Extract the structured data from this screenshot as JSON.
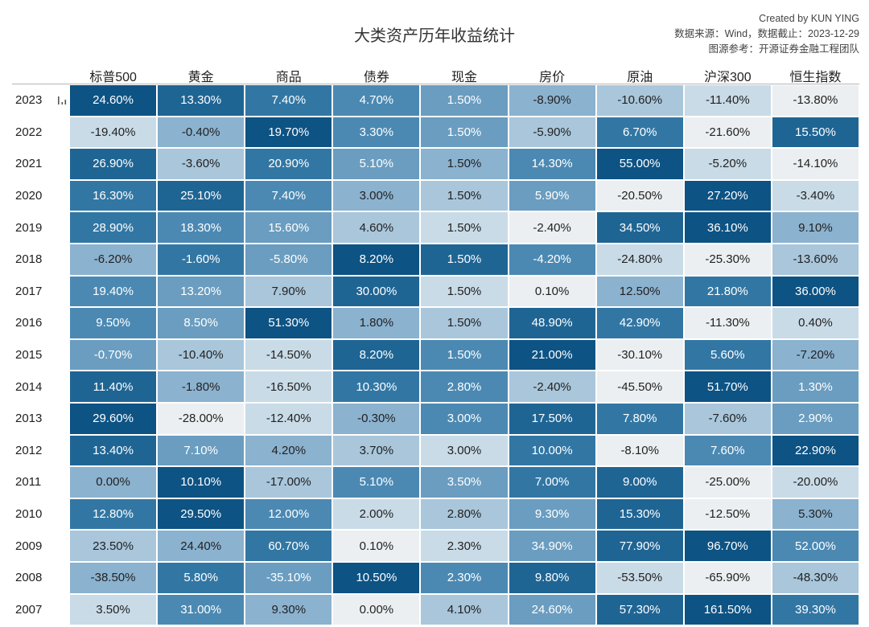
{
  "header": {
    "title": "大类资产历年收益统计",
    "credit": "Created by KUN YING",
    "source": "数据来源：Wind，数据截止：2023-12-29",
    "reference": "图源参考：开源证券金融工程团队"
  },
  "chart_data": {
    "type": "heatmap",
    "title": "大类资产历年收益统计",
    "columns": [
      "标普500",
      "黄金",
      "商品",
      "债券",
      "现金",
      "房价",
      "原油",
      "沪深300",
      "恒生指数"
    ],
    "rows": [
      {
        "year": "2023",
        "values": [
          "24.60%",
          "13.30%",
          "7.40%",
          "4.70%",
          "1.50%",
          "-8.90%",
          "-10.60%",
          "-11.40%",
          "-13.80%"
        ]
      },
      {
        "year": "2022",
        "values": [
          "-19.40%",
          "-0.40%",
          "19.70%",
          "3.30%",
          "1.50%",
          "-5.90%",
          "6.70%",
          "-21.60%",
          "15.50%"
        ]
      },
      {
        "year": "2021",
        "values": [
          "26.90%",
          "-3.60%",
          "20.90%",
          "5.10%",
          "1.50%",
          "14.30%",
          "55.00%",
          "-5.20%",
          "-14.10%"
        ]
      },
      {
        "year": "2020",
        "values": [
          "16.30%",
          "25.10%",
          "7.40%",
          "3.00%",
          "1.50%",
          "5.90%",
          "-20.50%",
          "27.20%",
          "-3.40%"
        ]
      },
      {
        "year": "2019",
        "values": [
          "28.90%",
          "18.30%",
          "15.60%",
          "4.60%",
          "1.50%",
          "-2.40%",
          "34.50%",
          "36.10%",
          "9.10%"
        ]
      },
      {
        "year": "2018",
        "values": [
          "-6.20%",
          "-1.60%",
          "-5.80%",
          "8.20%",
          "1.50%",
          "-4.20%",
          "-24.80%",
          "-25.30%",
          "-13.60%"
        ]
      },
      {
        "year": "2017",
        "values": [
          "19.40%",
          "13.20%",
          "7.90%",
          "30.00%",
          "1.50%",
          "0.10%",
          "12.50%",
          "21.80%",
          "36.00%"
        ]
      },
      {
        "year": "2016",
        "values": [
          "9.50%",
          "8.50%",
          "51.30%",
          "1.80%",
          "1.50%",
          "48.90%",
          "42.90%",
          "-11.30%",
          "0.40%"
        ]
      },
      {
        "year": "2015",
        "values": [
          "-0.70%",
          "-10.40%",
          "-14.50%",
          "8.20%",
          "1.50%",
          "21.00%",
          "-30.10%",
          "5.60%",
          "-7.20%"
        ]
      },
      {
        "year": "2014",
        "values": [
          "11.40%",
          "-1.80%",
          "-16.50%",
          "10.30%",
          "2.80%",
          "-2.40%",
          "-45.50%",
          "51.70%",
          "1.30%"
        ]
      },
      {
        "year": "2013",
        "values": [
          "29.60%",
          "-28.00%",
          "-12.40%",
          "-0.30%",
          "3.00%",
          "17.50%",
          "7.80%",
          "-7.60%",
          "2.90%"
        ]
      },
      {
        "year": "2012",
        "values": [
          "13.40%",
          "7.10%",
          "4.20%",
          "3.70%",
          "3.00%",
          "10.00%",
          "-8.10%",
          "7.60%",
          "22.90%"
        ]
      },
      {
        "year": "2011",
        "values": [
          "0.00%",
          "10.10%",
          "-17.00%",
          "5.10%",
          "3.50%",
          "7.00%",
          "9.00%",
          "-25.00%",
          "-20.00%"
        ]
      },
      {
        "year": "2010",
        "values": [
          "12.80%",
          "29.50%",
          "12.00%",
          "2.00%",
          "2.80%",
          "9.30%",
          "15.30%",
          "-12.50%",
          "5.30%"
        ]
      },
      {
        "year": "2009",
        "values": [
          "23.50%",
          "24.40%",
          "60.70%",
          "0.10%",
          "2.30%",
          "34.90%",
          "77.90%",
          "96.70%",
          "52.00%"
        ]
      },
      {
        "year": "2008",
        "values": [
          "-38.50%",
          "5.80%",
          "-35.10%",
          "10.50%",
          "2.30%",
          "9.80%",
          "-53.50%",
          "-65.90%",
          "-48.30%"
        ]
      },
      {
        "year": "2007",
        "values": [
          "3.50%",
          "31.00%",
          "9.30%",
          "0.00%",
          "4.10%",
          "24.60%",
          "57.30%",
          "161.50%",
          "39.30%"
        ]
      }
    ],
    "color_scale": [
      "#0d5384",
      "#1f6594",
      "#3277a4",
      "#4b89b3",
      "#6a9dc0",
      "#8bb2cf",
      "#a9c6db",
      "#c9dbe7",
      "#eceff1"
    ],
    "text_light": "#ffffff",
    "text_dark": "#222222"
  }
}
